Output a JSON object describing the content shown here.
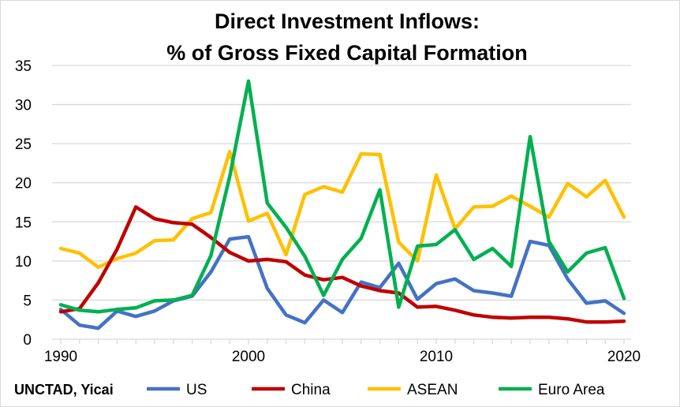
{
  "chart_data": {
    "type": "line",
    "title": [
      "Direct Investment Inflows:",
      "% of Gross Fixed Capital Formation"
    ],
    "source": "UNCTAD, Yicai",
    "xlabel": "",
    "ylabel": "",
    "xlim": [
      1990,
      2020
    ],
    "ylim": [
      0,
      35
    ],
    "yticks": [
      0,
      5,
      10,
      15,
      20,
      25,
      30,
      35
    ],
    "xticks": [
      1990,
      2000,
      2010,
      2020
    ],
    "grid": true,
    "legend": "bottom",
    "x": [
      1990,
      1991,
      1992,
      1993,
      1994,
      1995,
      1996,
      1997,
      1998,
      1999,
      2000,
      2001,
      2002,
      2003,
      2004,
      2005,
      2006,
      2007,
      2008,
      2009,
      2010,
      2011,
      2012,
      2013,
      2014,
      2015,
      2016,
      2017,
      2018,
      2019,
      2020
    ],
    "series": [
      {
        "name": "US",
        "color": "#4472C4",
        "values": [
          3.8,
          1.8,
          1.4,
          3.6,
          2.9,
          3.6,
          4.9,
          5.5,
          8.6,
          12.8,
          13.1,
          6.5,
          3.1,
          2.1,
          5.0,
          3.4,
          7.3,
          6.6,
          9.7,
          5.1,
          7.1,
          7.7,
          6.2,
          5.9,
          5.5,
          12.5,
          12.0,
          7.7,
          4.6,
          4.9,
          3.3
        ]
      },
      {
        "name": "China",
        "color": "#C00000",
        "values": [
          3.5,
          3.9,
          7.2,
          11.5,
          16.9,
          15.4,
          14.9,
          14.7,
          13.0,
          11.1,
          10.0,
          10.2,
          9.9,
          8.2,
          7.6,
          7.9,
          6.8,
          6.2,
          5.9,
          4.1,
          4.2,
          3.7,
          3.1,
          2.8,
          2.7,
          2.8,
          2.8,
          2.6,
          2.2,
          2.2,
          2.3
        ]
      },
      {
        "name": "ASEAN",
        "color": "#FFC000",
        "values": [
          11.6,
          11.0,
          9.2,
          10.3,
          11.0,
          12.6,
          12.7,
          15.4,
          16.2,
          24.0,
          15.1,
          16.1,
          10.8,
          18.5,
          19.5,
          18.8,
          23.7,
          23.6,
          12.4,
          10.0,
          21.0,
          14.1,
          16.9,
          17.0,
          18.3,
          17.0,
          15.6,
          19.9,
          18.2,
          20.3,
          15.6
        ]
      },
      {
        "name": "Euro Area",
        "color": "#00B050",
        "values": [
          4.4,
          3.7,
          3.5,
          3.8,
          4.0,
          4.9,
          5.0,
          5.6,
          10.7,
          20.8,
          33.0,
          17.4,
          14.3,
          10.6,
          5.6,
          10.2,
          12.9,
          19.1,
          4.1,
          11.9,
          12.1,
          14.0,
          10.2,
          11.6,
          9.3,
          25.9,
          12.5,
          8.6,
          11.0,
          11.7,
          5.2
        ]
      }
    ]
  }
}
